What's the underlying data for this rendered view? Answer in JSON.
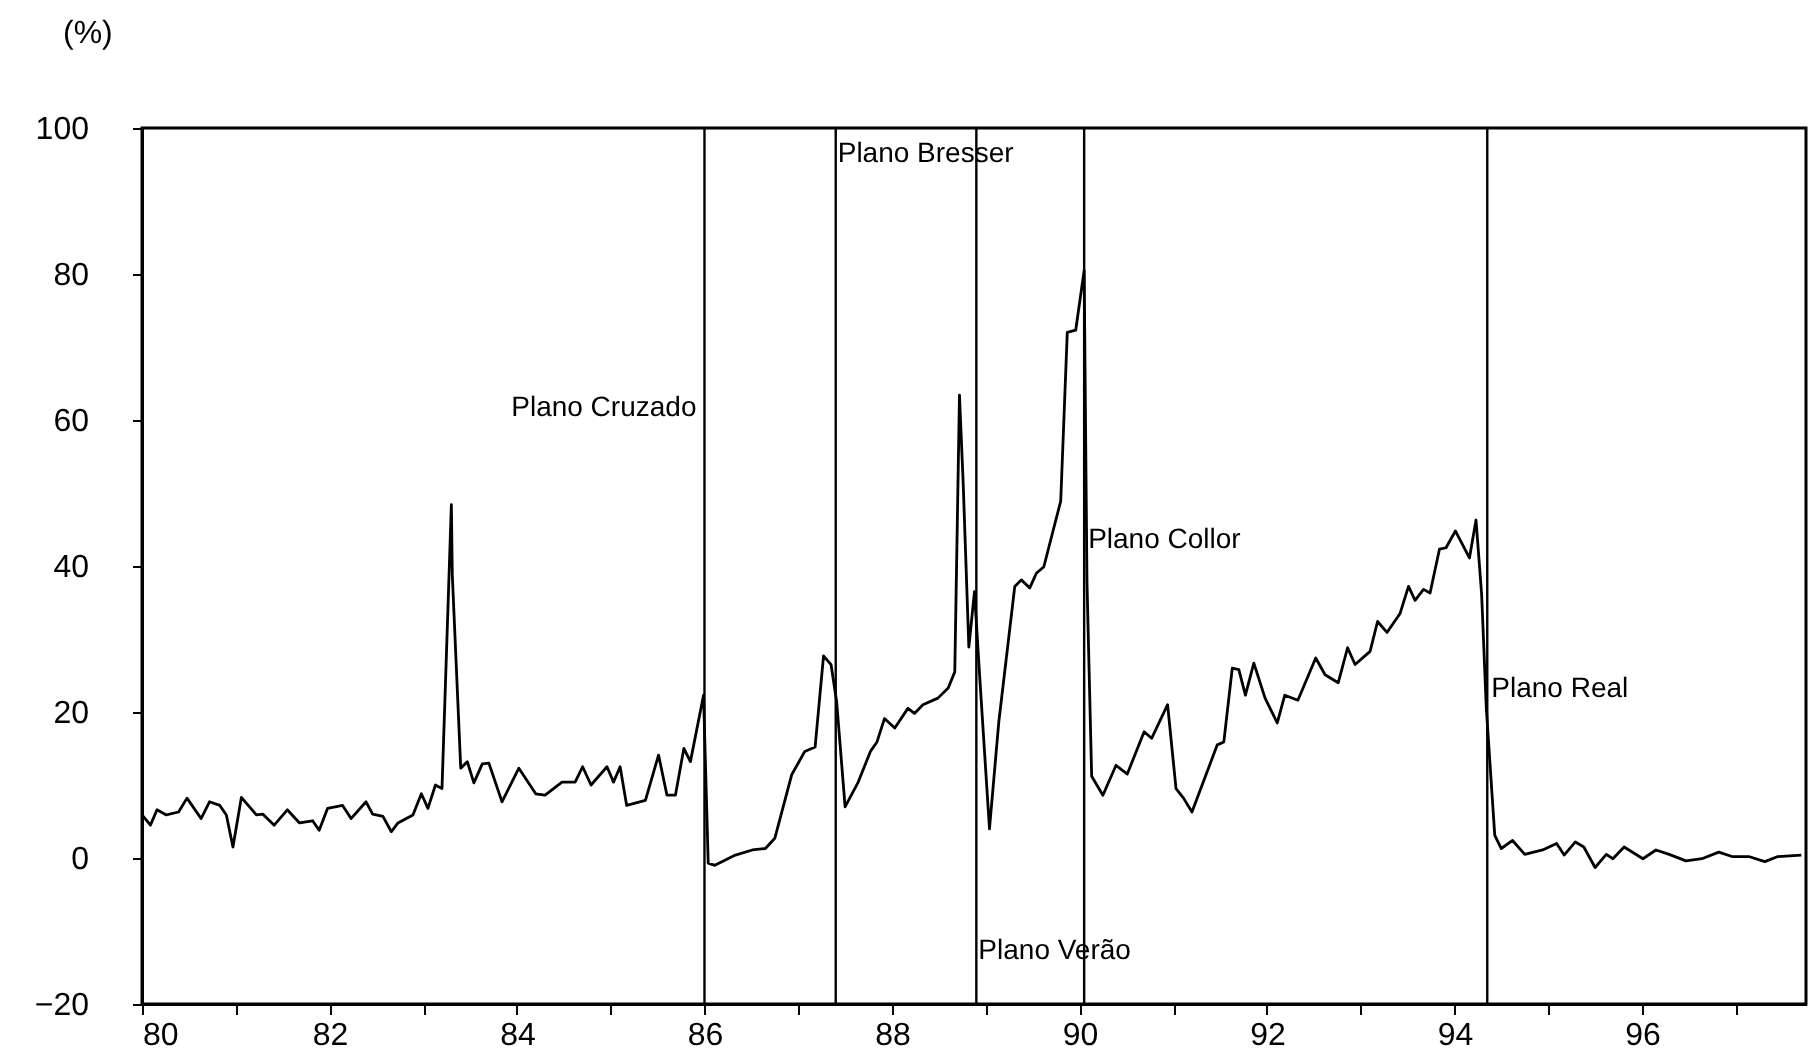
{
  "chart_data": {
    "type": "line",
    "ylabel": "(%)",
    "x": [
      1980.0,
      1980.09,
      1980.16,
      1980.26,
      1980.39,
      1980.48,
      1980.63,
      1980.72,
      1980.83,
      1980.9,
      1980.97,
      1981.06,
      1981.22,
      1981.29,
      1981.41,
      1981.55,
      1981.68,
      1981.82,
      1981.89,
      1981.98,
      1982.14,
      1982.23,
      1982.39,
      1982.46,
      1982.57,
      1982.66,
      1982.73,
      1982.89,
      1982.98,
      1983.05,
      1983.13,
      1983.2,
      1983.3,
      1983.31,
      1983.4,
      1983.47,
      1983.54,
      1983.63,
      1983.7,
      1983.84,
      1984.02,
      1984.2,
      1984.3,
      1984.48,
      1984.62,
      1984.7,
      1984.79,
      1984.96,
      1985.03,
      1985.1,
      1985.17,
      1985.37,
      1985.51,
      1985.6,
      1985.69,
      1985.78,
      1985.85,
      1985.99,
      1986.04,
      1986.11,
      1986.33,
      1986.51,
      1986.65,
      1986.75,
      1986.93,
      1987.07,
      1987.18,
      1987.27,
      1987.35,
      1987.41,
      1987.5,
      1987.64,
      1987.77,
      1987.84,
      1987.92,
      1988.03,
      1988.17,
      1988.24,
      1988.33,
      1988.49,
      1988.6,
      1988.67,
      1988.72,
      1988.76,
      1988.82,
      1988.88,
      1988.93,
      1989.04,
      1989.14,
      1989.31,
      1989.38,
      1989.47,
      1989.54,
      1989.62,
      1989.8,
      1989.87,
      1989.96,
      1990.05,
      1990.08,
      1990.13,
      1990.25,
      1990.39,
      1990.51,
      1990.69,
      1990.77,
      1990.94,
      1991.03,
      1991.11,
      1991.2,
      1991.47,
      1991.54,
      1991.63,
      1991.7,
      1991.77,
      1991.86,
      1991.98,
      1992.11,
      1992.19,
      1992.33,
      1992.52,
      1992.62,
      1992.76,
      1992.86,
      1992.94,
      1993.1,
      1993.18,
      1993.28,
      1993.42,
      1993.51,
      1993.58,
      1993.67,
      1993.74,
      1993.84,
      1993.91,
      1994.01,
      1994.16,
      1994.23,
      1994.29,
      1994.34,
      1994.43,
      1994.5,
      1994.62,
      1994.75,
      1994.94,
      1995.09,
      1995.17,
      1995.29,
      1995.38,
      1995.5,
      1995.62,
      1995.69,
      1995.81,
      1996.01,
      1996.15,
      1996.29,
      1996.47,
      1996.64,
      1996.82,
      1996.96,
      1997.14,
      1997.31,
      1997.45,
      1997.7
    ],
    "series": [
      {
        "color": "#000000",
        "values": [
          5.9,
          4.5,
          6.6,
          5.9,
          6.3,
          8.2,
          5.4,
          7.7,
          7.2,
          5.9,
          1.5,
          8.3,
          5.9,
          6.0,
          4.5,
          6.6,
          4.8,
          5.1,
          3.8,
          6.8,
          7.2,
          5.4,
          7.7,
          6.0,
          5.7,
          3.6,
          4.8,
          5.9,
          8.8,
          6.8,
          10.0,
          9.5,
          48.4,
          38.8,
          12.3,
          13.2,
          10.3,
          12.9,
          13.0,
          7.7,
          12.3,
          8.8,
          8.6,
          10.4,
          10.4,
          12.5,
          10.0,
          12.5,
          10.4,
          12.5,
          7.2,
          7.9,
          14.1,
          8.6,
          8.6,
          15.0,
          13.2,
          22.3,
          -0.7,
          -1.0,
          0.4,
          1.1,
          1.3,
          2.7,
          11.4,
          14.6,
          15.2,
          27.7,
          26.5,
          21.4,
          7.0,
          10.4,
          14.6,
          15.9,
          19.1,
          17.8,
          20.5,
          19.8,
          21.0,
          21.9,
          23.3,
          25.5,
          63.4,
          51.2,
          28.9,
          36.5,
          26.0,
          4.0,
          18.7,
          37.2,
          38.1,
          37.0,
          39.0,
          39.9,
          48.9,
          72.0,
          72.3,
          80.5,
          37.9,
          11.2,
          8.6,
          12.7,
          11.5,
          17.3,
          16.4,
          21.0,
          9.5,
          8.2,
          6.3,
          15.5,
          15.9,
          26.0,
          25.8,
          22.3,
          26.7,
          21.9,
          18.5,
          22.3,
          21.6,
          27.4,
          25.1,
          24.0,
          28.8,
          26.5,
          28.3,
          32.4,
          30.9,
          33.5,
          37.2,
          35.3,
          36.8,
          36.3,
          42.3,
          42.5,
          44.8,
          41.1,
          46.3,
          36.1,
          20.5,
          3.1,
          1.3,
          2.4,
          0.5,
          1.1,
          2.0,
          0.4,
          2.2,
          1.5,
          -1.3,
          0.5,
          -0.1,
          1.5,
          -0.1,
          1.1,
          0.5,
          -0.4,
          -0.1,
          0.8,
          0.2,
          0.2,
          -0.5,
          0.2,
          0.4
        ]
      }
    ],
    "xlim": [
      1980,
      1997.75
    ],
    "xticks": [
      {
        "value": 1980,
        "label": "80"
      },
      {
        "value": 1981,
        "label": null
      },
      {
        "value": 1982,
        "label": "82"
      },
      {
        "value": 1983,
        "label": null
      },
      {
        "value": 1984,
        "label": "84"
      },
      {
        "value": 1985,
        "label": null
      },
      {
        "value": 1986,
        "label": "86"
      },
      {
        "value": 1987,
        "label": null
      },
      {
        "value": 1988,
        "label": "88"
      },
      {
        "value": 1989,
        "label": null
      },
      {
        "value": 1990,
        "label": "90"
      },
      {
        "value": 1991,
        "label": null
      },
      {
        "value": 1992,
        "label": "92"
      },
      {
        "value": 1993,
        "label": null
      },
      {
        "value": 1994,
        "label": "94"
      },
      {
        "value": 1995,
        "label": null
      },
      {
        "value": 1996,
        "label": "96"
      },
      {
        "value": 1997,
        "label": null
      }
    ],
    "ylim": [
      -20,
      100
    ],
    "yticks": [
      -20,
      0,
      20,
      40,
      60,
      80,
      100
    ],
    "ref_lines": [
      {
        "axis": "x",
        "value": 1986.0,
        "label": "Plano Cruzado"
      },
      {
        "axis": "x",
        "value": 1987.4,
        "label": "Plano Bresser"
      },
      {
        "axis": "x",
        "value": 1988.9,
        "label": "Plano Verão"
      },
      {
        "axis": "x",
        "value": 1990.05,
        "label": "Plano Collor"
      },
      {
        "axis": "x",
        "value": 1994.35,
        "label": "Plano Real"
      }
    ],
    "grid": false
  }
}
